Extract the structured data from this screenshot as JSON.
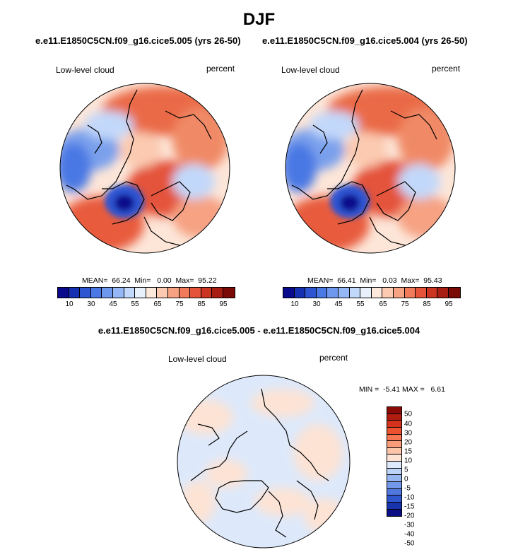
{
  "title": "DJF",
  "left_case": "e.e11.E1850C5CN.f09_g16.cice5.005 (yrs 26-50)",
  "right_case": "e.e11.E1850C5CN.f09_g16.cice5.004 (yrs 26-50)",
  "diff_title": "e.e11.E1850C5CN.f09_g16.cice5.005 - e.e11.E1850C5CN.f09_g16.cice5.004",
  "panels": {
    "left": {
      "variable": "Low-level cloud",
      "units": "percent",
      "stats": "MEAN=  66.24  Min=   0.00  Max=  95.22"
    },
    "right": {
      "variable": "Low-level cloud",
      "units": "percent",
      "stats": "MEAN=  66.41  Min=   0.03  Max=  95.43"
    },
    "diff": {
      "variable": "Low-level cloud",
      "units": "percent",
      "stats": "MIN =  -5.41 MAX =   6.61"
    }
  },
  "colorbar_main": {
    "colors": [
      "#0a0a8c",
      "#1530b0",
      "#2d55d2",
      "#4a78e4",
      "#6e97ee",
      "#96b7f5",
      "#c2d8fa",
      "#e8f0fb",
      "#fde8dc",
      "#fbcab0",
      "#f6a283",
      "#f07a59",
      "#e4533a",
      "#cc3422",
      "#a81d12",
      "#7a0a06"
    ],
    "ticks": [
      "10",
      "30",
      "45",
      "55",
      "65",
      "75",
      "85",
      "95"
    ]
  },
  "colorbar_diff": {
    "colors": [
      "#8a0b06",
      "#b11c10",
      "#d4321c",
      "#ec5230",
      "#f57650",
      "#f99c7c",
      "#fcc4a8",
      "#fde3d4",
      "#dde9fb",
      "#bcd3f7",
      "#97b6f0",
      "#7398e9",
      "#5077de",
      "#2f56cc",
      "#1834ad",
      "#0a0f86"
    ],
    "ticks": [
      "50",
      "40",
      "30",
      "20",
      "15",
      "10",
      "5",
      "0",
      "-5",
      "-10",
      "-15",
      "-20",
      "-30",
      "-40",
      "-50"
    ]
  }
}
